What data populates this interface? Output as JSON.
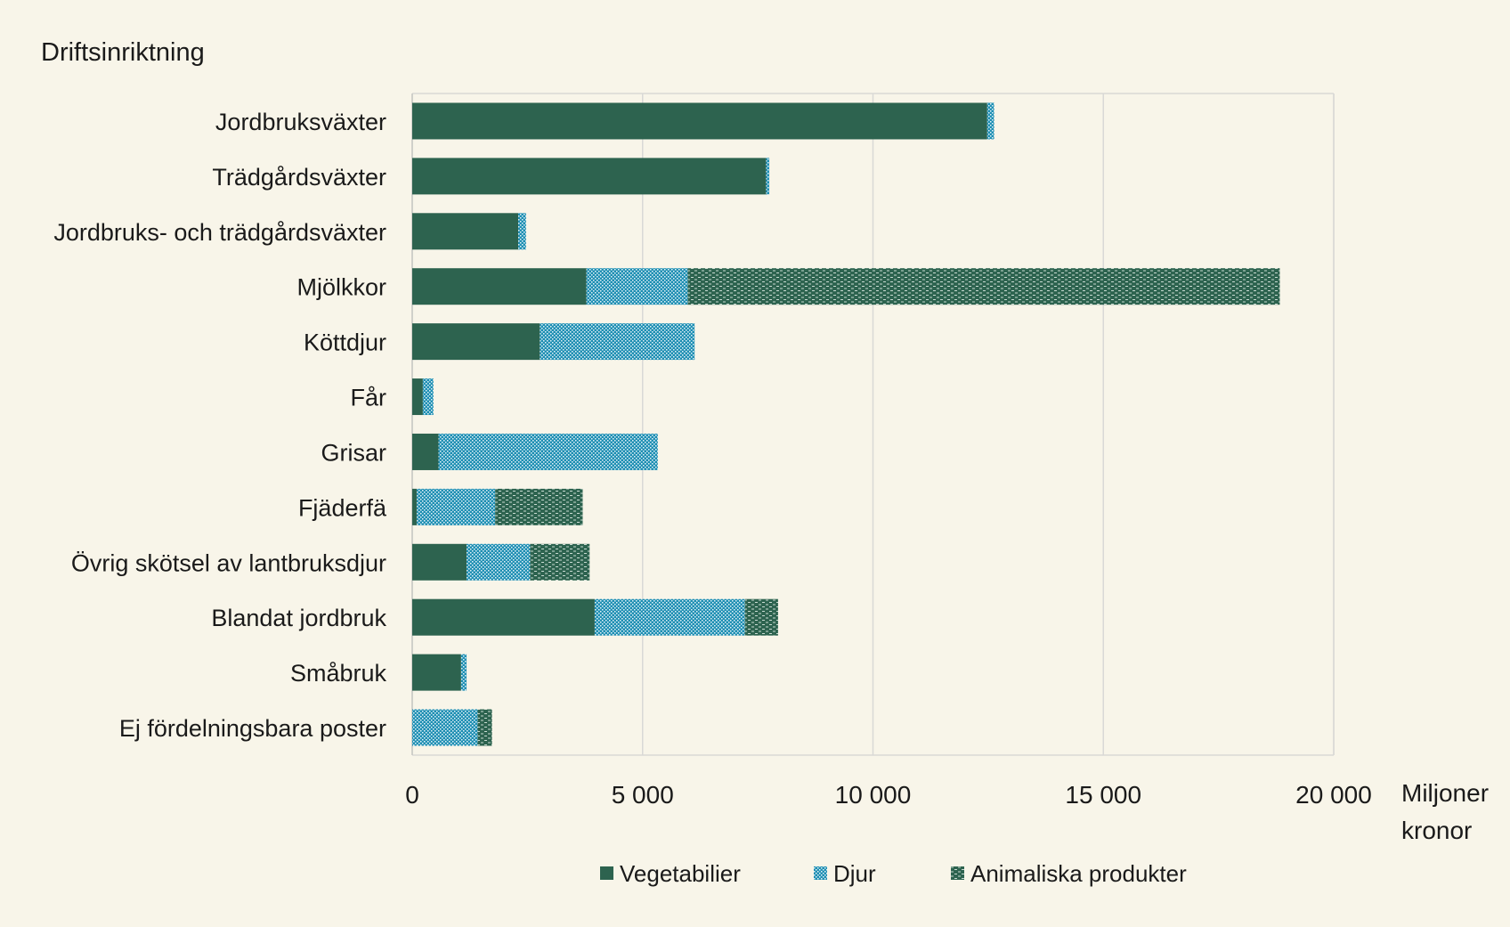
{
  "chart_data": {
    "type": "bar",
    "orientation": "horizontal",
    "stacked": true,
    "title": "Driftsinriktning",
    "xlabel_line1": "Miljoner",
    "xlabel_line2": "kronor",
    "xlim": [
      0,
      20000
    ],
    "xticks": [
      0,
      5000,
      10000,
      15000,
      20000
    ],
    "xtick_labels": [
      "0",
      "5 000",
      "10 000",
      "15 000",
      "20 000"
    ],
    "grid": true,
    "legend_position": "bottom",
    "categories": [
      "Jordbruksväxter",
      "Trädgårdsväxter",
      "Jordbruks- och trädgårdsväxter",
      "Mjölkkor",
      "Köttdjur",
      "Får",
      "Grisar",
      "Fjäderfä",
      "Övrig skötsel av lantbruksdjur",
      "Blandat jordbruk",
      "Småbruk",
      "Ej fördelningsbara poster"
    ],
    "series": [
      {
        "name": "Vegetabilier",
        "color": "#2d634f",
        "pattern": "solid",
        "values": [
          12480,
          7680,
          2300,
          3780,
          2770,
          230,
          570,
          100,
          1180,
          3960,
          1060,
          0
        ]
      },
      {
        "name": "Djur",
        "color": "#1f8fb3",
        "pattern": "dots",
        "values": [
          150,
          70,
          170,
          2200,
          3360,
          230,
          4760,
          1700,
          1380,
          3260,
          120,
          1420
        ]
      },
      {
        "name": "Animaliska produkter",
        "color": "#2d634f",
        "pattern": "dashes",
        "values": [
          0,
          0,
          0,
          12850,
          0,
          0,
          0,
          1900,
          1290,
          720,
          0,
          310
        ]
      }
    ]
  }
}
